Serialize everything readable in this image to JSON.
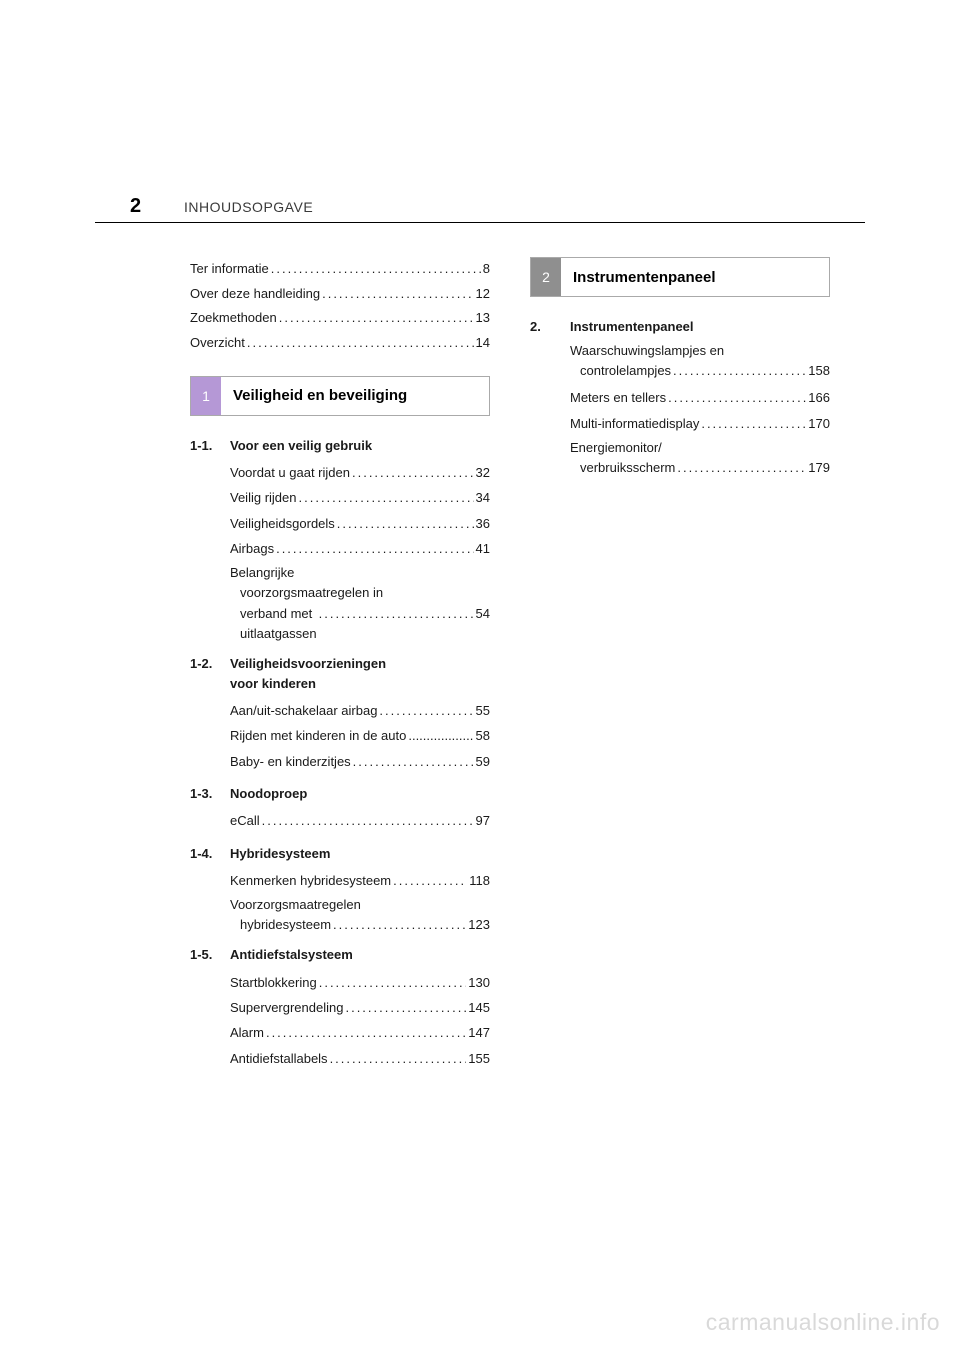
{
  "page_number": "2",
  "header_title": "INHOUDSOPGAVE",
  "watermark": "carmanualsonline.info",
  "colors": {
    "chapter1_tab": "#b598d6",
    "chapter2_tab": "#8f8f8f",
    "text": "#1a1a1a",
    "rule": "#000000",
    "watermark": "#d9d9d9",
    "background": "#ffffff"
  },
  "left_column": {
    "intro": [
      {
        "label": "Ter informatie",
        "page": "8"
      },
      {
        "label": "Over deze handleiding",
        "page": "12"
      },
      {
        "label": "Zoekmethoden",
        "page": "13"
      },
      {
        "label": "Overzicht",
        "page": "14"
      }
    ],
    "chapter": {
      "num": "1",
      "title": "Veiligheid en beveiliging"
    },
    "sections": [
      {
        "num": "1-1.",
        "title": "Voor een veilig gebruik",
        "entries": [
          {
            "label": "Voordat u gaat rijden",
            "page": "32"
          },
          {
            "label": "Veilig rijden",
            "page": "34"
          },
          {
            "label": "Veiligheidsgordels",
            "page": "36"
          },
          {
            "label": "Airbags",
            "page": "41"
          },
          {
            "label_lines": [
              "Belangrijke",
              "voorzorgsmaatregelen in",
              "verband met uitlaatgassen"
            ],
            "page": "54"
          }
        ]
      },
      {
        "num": "1-2.",
        "title_lines": [
          "Veiligheidsvoorzieningen",
          "voor kinderen"
        ],
        "entries": [
          {
            "label": "Aan/uit-schakelaar airbag",
            "page": "55"
          },
          {
            "label": "Rijden met kinderen in de auto",
            "page": "58",
            "tight": true
          },
          {
            "label": "Baby- en kinderzitjes",
            "page": "59"
          }
        ]
      },
      {
        "num": "1-3.",
        "title": "Noodoproep",
        "entries": [
          {
            "label": "eCall",
            "page": "97"
          }
        ]
      },
      {
        "num": "1-4.",
        "title": "Hybridesysteem",
        "entries": [
          {
            "label": "Kenmerken hybridesysteem",
            "page": "118"
          },
          {
            "label_lines": [
              "Voorzorgsmaatregelen",
              "hybridesysteem"
            ],
            "page": "123"
          }
        ]
      },
      {
        "num": "1-5.",
        "title": "Antidiefstalsysteem",
        "entries": [
          {
            "label": "Startblokkering",
            "page": "130"
          },
          {
            "label": "Supervergrendeling",
            "page": "145"
          },
          {
            "label": "Alarm",
            "page": "147"
          },
          {
            "label": "Antidiefstallabels",
            "page": "155"
          }
        ]
      }
    ]
  },
  "right_column": {
    "chapter": {
      "num": "2",
      "title": "Instrumentenpaneel"
    },
    "sections": [
      {
        "num": "2.",
        "title": "Instrumentenpaneel",
        "entries": [
          {
            "label_lines": [
              "Waarschuwingslampjes en",
              "controlelampjes"
            ],
            "page": "158"
          },
          {
            "label": "Meters en tellers",
            "page": "166"
          },
          {
            "label": "Multi-informatiedisplay",
            "page": "170"
          },
          {
            "label_lines": [
              "Energiemonitor/",
              "verbruiksscherm"
            ],
            "page": "179"
          }
        ]
      }
    ]
  }
}
